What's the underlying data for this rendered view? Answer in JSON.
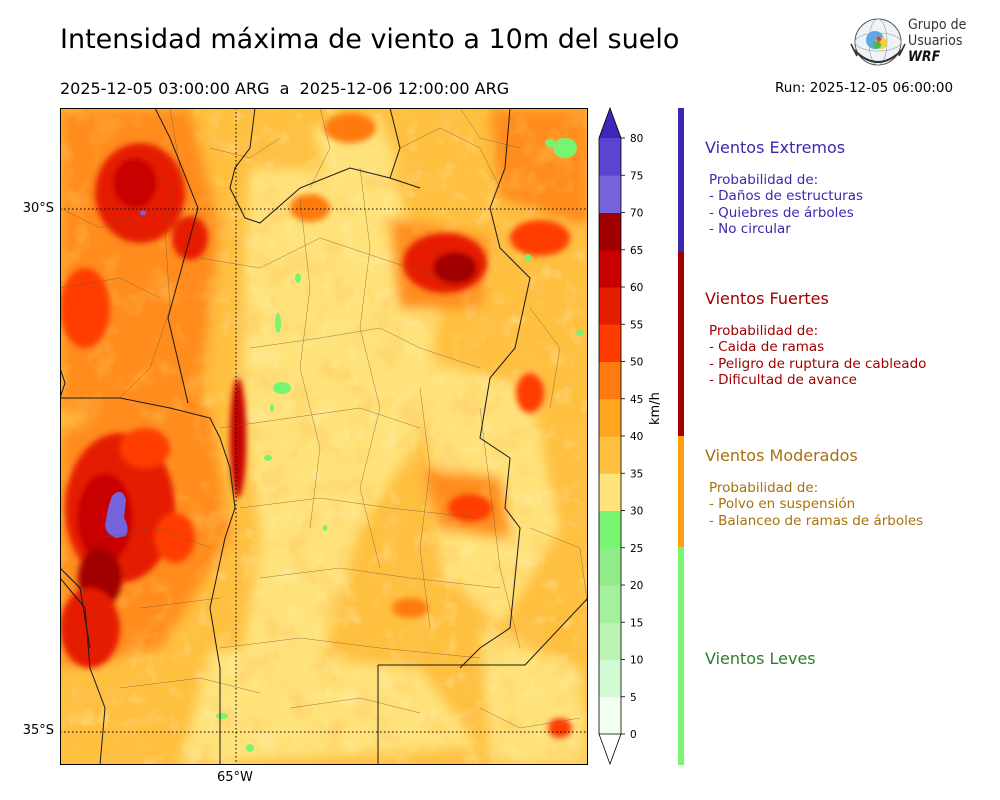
{
  "header": {
    "title": "Intensidad máxima de viento a 10m del suelo",
    "date_range": "2025-12-05 03:00:00 ARG  a  2025-12-06 12:00:00 ARG",
    "run_label": "Run: 2025-12-05 06:00:00"
  },
  "logo": {
    "line1": "Grupo de",
    "line2": "Usuarios",
    "line3": "WRF",
    "icon": "wrf-globe-logo"
  },
  "map": {
    "lat_labels": [
      "30°S",
      "35°S"
    ],
    "lon_labels": [
      "65°W"
    ]
  },
  "colorbar": {
    "unit": "km/h",
    "ticks": [
      "0",
      "5",
      "10",
      "15",
      "20",
      "25",
      "30",
      "35",
      "40",
      "45",
      "50",
      "55",
      "60",
      "65",
      "70",
      "75",
      "80"
    ],
    "colors": [
      "#f0fff0",
      "#d2fad2",
      "#b9f5b0",
      "#a4f09c",
      "#8fec86",
      "#78f570",
      "#ffe27a",
      "#ffbf3f",
      "#ffa51f",
      "#ff7a0f",
      "#ff3c00",
      "#e61e00",
      "#c80000",
      "#a00000",
      "#7563dc",
      "#5b45d0",
      "#3f26b8"
    ]
  },
  "categories": [
    {
      "title": "Vientos Extremos",
      "color": "#3a28b0",
      "lines": [
        "Probabilidad de:",
        "- Daños de estructuras",
        "- Quiebres de árboles",
        "- No circular"
      ]
    },
    {
      "title": "Vientos Fuertes",
      "color": "#a00000",
      "lines": [
        "Probabilidad de:",
        "- Caida de ramas",
        "- Peligro de ruptura de cableado",
        "- Dificultad de avance"
      ]
    },
    {
      "title": "Vientos Moderados",
      "color": "#a8700e",
      "bar_color": "#ffa010",
      "lines": [
        "Probabilidad de:",
        "- Polvo en suspensión",
        "- Balanceo de ramas de árboles"
      ]
    },
    {
      "title": "Vientos Leves",
      "color": "#2e7d2e",
      "bar_color": "#78f570",
      "lines": []
    }
  ]
}
